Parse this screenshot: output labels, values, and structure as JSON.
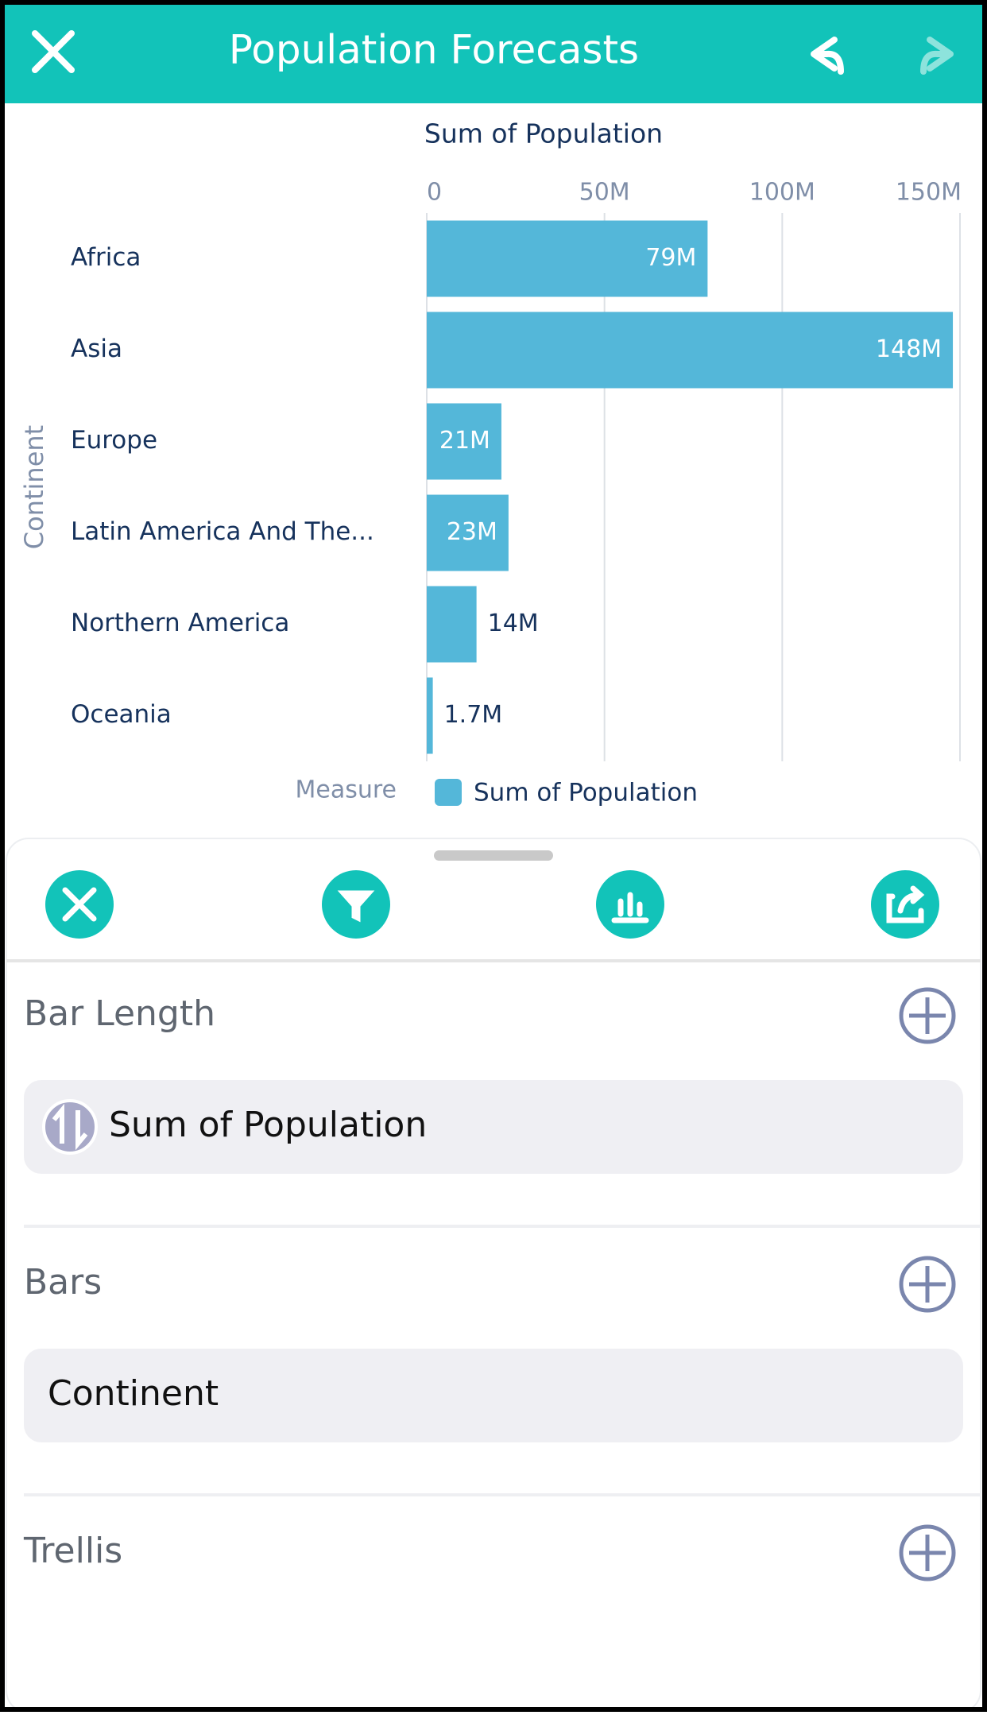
{
  "header": {
    "title": "Population Forecasts"
  },
  "chart_data": {
    "type": "bar",
    "orientation": "horizontal",
    "x_label": "Sum of Population",
    "y_label": "Continent",
    "categories": [
      "Africa",
      "Asia",
      "Europe",
      "Latin America And The...",
      "Northern America",
      "Oceania"
    ],
    "series": [
      {
        "name": "Sum of Population",
        "color": "#54b7d9",
        "values": [
          79000000,
          148000000,
          21000000,
          23000000,
          14000000,
          1700000
        ],
        "value_labels": [
          "79M",
          "148M",
          "21M",
          "23M",
          "14M",
          "1.7M"
        ]
      }
    ],
    "xlim": [
      0,
      150000000
    ],
    "xticks": [
      0,
      {
        "value": 50000000,
        "label": "50M"
      },
      {
        "value": 100000000,
        "label": "100M"
      },
      {
        "value": 150000000,
        "label": "150M"
      }
    ],
    "grid": true,
    "legend_title": "Measure"
  },
  "panel": {
    "sections": [
      {
        "title": "Bar Length",
        "field": "Sum of Population"
      },
      {
        "title": "Bars",
        "field": "Continent"
      },
      {
        "title": "Trellis"
      }
    ]
  }
}
